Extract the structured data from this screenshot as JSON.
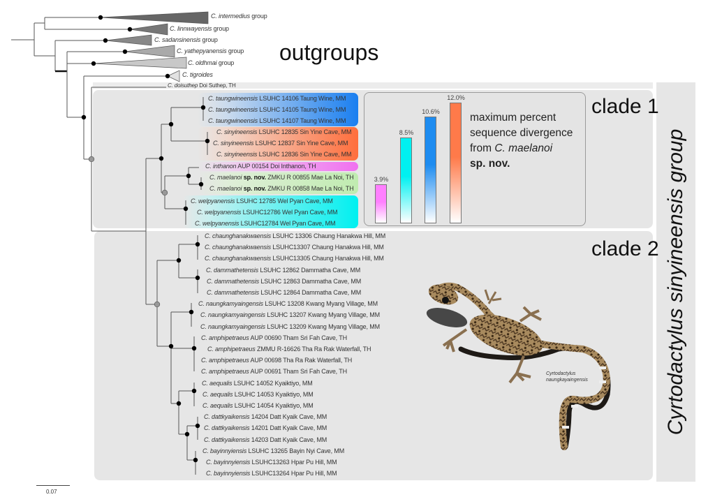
{
  "outgroups": {
    "title": "outgroups",
    "groups": [
      {
        "species": "C. intermedius",
        "suffix": "group"
      },
      {
        "species": "C. linnwayensis",
        "suffix": "group"
      },
      {
        "species": "C. sadansinensis",
        "suffix": "group"
      },
      {
        "species": "C. yathepyanensis",
        "suffix": "group"
      },
      {
        "species": "C. oldhmai",
        "suffix": "group"
      },
      {
        "species": "C. tigroides",
        "suffix": ""
      }
    ],
    "doisuthep": {
      "species": "C. doisuthep",
      "rest": "Doi Suthep, TH"
    }
  },
  "clade1": {
    "title": "clade 1",
    "tips": [
      {
        "sp": "C. taungwineensis",
        "bold": "",
        "rest": "LSUHC 14106 Taung Wine, MM"
      },
      {
        "sp": "C. taungwineensis",
        "bold": "",
        "rest": "LSUHC 14105 Taung Wine, MM"
      },
      {
        "sp": "C. taungwineensis",
        "bold": "",
        "rest": "LSUHC 14107 Taung Wine, MM"
      },
      {
        "sp": "C. sinyineensis",
        "bold": "",
        "rest": "LSUHC 12835 Sin Yine Cave, MM"
      },
      {
        "sp": "C. sinyineensis",
        "bold": "",
        "rest": "LSUHC 12837 Sin Yine Cave, MM"
      },
      {
        "sp": "C. sinyineensis",
        "bold": "",
        "rest": "LSUHC 12836 Sin Yine Cave, MM"
      },
      {
        "sp": "C. inthanon",
        "bold": "",
        "rest": "AUP 00154 Doi Inthanon, TH"
      },
      {
        "sp": "C. maelanoi",
        "bold": "sp. nov.",
        "rest": "ZMKU R 00855 Mae La Noi, TH"
      },
      {
        "sp": "C. maelanoi",
        "bold": "sp. nov.",
        "rest": "ZMKU R 00858 Mae La Noi, TH"
      },
      {
        "sp": "C. welpyanensis",
        "bold": "",
        "rest": "LSUHC 12785 Wel Pyan Cave, MM"
      },
      {
        "sp": "C. welpyanensis",
        "bold": "",
        "rest": "LSUHC12786 Wel Pyan Cave, MM"
      },
      {
        "sp": "C. welpyanensis",
        "bold": "",
        "rest": "LSUHC12784 Wel Pyan Cave, MM"
      }
    ],
    "highlight_colors": {
      "taungwineensis": "#1a7ff0",
      "sinyineensis": "#ff6e3c",
      "inthanon": "#f070f0",
      "maelanoi": "#c0ecb0",
      "welpyanensis": "#00f0f0"
    }
  },
  "clade2": {
    "title": "clade 2",
    "tips": [
      {
        "sp": "C. chaunghanakwaensis",
        "bold": "",
        "rest": "LSUHC 13306 Chaung Hanakwa Hill, MM"
      },
      {
        "sp": "C. chaunghanakwaensis",
        "bold": "",
        "rest": "LSUHC13307 Chaung Hanakwa Hill, MM"
      },
      {
        "sp": "C. chaunghanakwaensis",
        "bold": "",
        "rest": "LSUHC13305 Chaung Hanakwa Hill, MM"
      },
      {
        "sp": "C. dammathetensis",
        "bold": "",
        "rest": "LSUHC 12862 Dammatha Cave, MM"
      },
      {
        "sp": "C. dammathetensis",
        "bold": "",
        "rest": "LSUHC 12863 Dammatha Cave, MM"
      },
      {
        "sp": "C. dammathetensis",
        "bold": "",
        "rest": "LSUHC 12864 Dammatha Cave, MM"
      },
      {
        "sp": "C. naungkamyaingensis",
        "bold": "",
        "rest": "LSUHC 13208 Kwang Myang Village, MM"
      },
      {
        "sp": "C. naungkamyaingensis",
        "bold": "",
        "rest": "LSUHC 13207 Kwang Myang Village, MM"
      },
      {
        "sp": "C. naungkamyaingensis",
        "bold": "",
        "rest": "LSUHC 13209 Kwang Myang Village, MM"
      },
      {
        "sp": "C. amphipetraeus",
        "bold": "",
        "rest": "AUP 00690 Tham Sri Fah Cave, TH"
      },
      {
        "sp": "C. amphipetraeus",
        "bold": "",
        "rest": "ZMMU R-16626 Tha Ra Rak Waterfall, TH"
      },
      {
        "sp": "C. amphipetraeus",
        "bold": "",
        "rest": "AUP 00698 Tha Ra Rak Waterfall, TH"
      },
      {
        "sp": "C. amphipetraeus",
        "bold": "",
        "rest": "AUP 00691 Tham Sri Fah Cave, TH"
      },
      {
        "sp": "C. aequalis",
        "bold": "",
        "rest": "LSUHC 14052 Kyaiktiyo, MM"
      },
      {
        "sp": "C. aequalis",
        "bold": "",
        "rest": "LSUHC 14053 Kyaiktiyo, MM"
      },
      {
        "sp": "C. aequalis",
        "bold": "",
        "rest": "LSUHC 14054 Kyaiktiyo, MM"
      },
      {
        "sp": "C. dattkyaikensis",
        "bold": "",
        "rest": "14204 Datt Kyaik Cave, MM"
      },
      {
        "sp": "C. dattkyaikensis",
        "bold": "",
        "rest": "14201 Datt Kyaik Cave, MM"
      },
      {
        "sp": "C. dattkyaikensis",
        "bold": "",
        "rest": "14203 Datt Kyaik Cave, MM"
      },
      {
        "sp": "C. bayinnyiensis",
        "bold": "",
        "rest": "LSUHC 13265 Bayin Nyi Cave, MM"
      },
      {
        "sp": "C. bayinnyiensis",
        "bold": "",
        "rest": "LSUHC13263 Hpar Pu Hill, MM"
      },
      {
        "sp": "C. bayinnyiensis",
        "bold": "",
        "rest": "LSUHC13264 Hpar Pu Hill, MM"
      }
    ]
  },
  "group_label": "Cyrtodactylus sinyineensis group",
  "photo_caption": {
    "line1": "Cyrtodactylus",
    "line2": "naungkayaingensis"
  },
  "scale_bar": "0.07",
  "chart_data": {
    "type": "bar",
    "title": "maximum percent sequence divergence from C. maelanoi sp. nov.",
    "legend": {
      "line1": "maximum percent",
      "line2": "sequence divergence",
      "line3_prefix": "from ",
      "line3_italic": "C. maelanoi",
      "line4": "sp. nov."
    },
    "categories": [
      "C. inthanon",
      "C. welpyanensis",
      "C. taungwineensis",
      "C. sinyineensis"
    ],
    "values": [
      3.9,
      8.5,
      10.6,
      12.0
    ],
    "labels": [
      "3.9%",
      "8.5%",
      "10.6%",
      "12.0%"
    ],
    "colors": [
      "#ff80ff",
      "#00f0f0",
      "#1e8cf0",
      "#ff7a4a"
    ],
    "ylim": [
      0,
      12.0
    ]
  }
}
